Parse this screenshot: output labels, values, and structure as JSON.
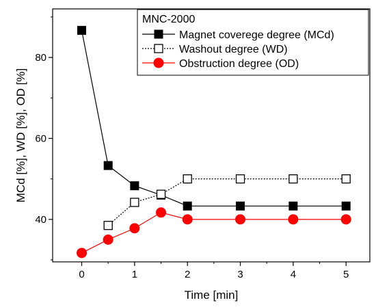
{
  "chart_data": {
    "type": "line",
    "xlabel": "Time [min]",
    "ylabel": "MCd [%], WD [%], OD [%]",
    "xlim": [
      -0.55,
      5.45
    ],
    "ylim": [
      29.5,
      92
    ],
    "x_ticks": [
      0,
      1,
      2,
      3,
      4,
      5
    ],
    "x_minor_ticks": [
      0.5,
      1.5,
      2.5,
      3.5,
      4.5
    ],
    "y_ticks": [
      40,
      60,
      80
    ],
    "y_minor_ticks": [
      30,
      50,
      70,
      90
    ],
    "grid": false,
    "legend_position": "top-right",
    "legend_title": "MNC-2000",
    "series": [
      {
        "name": "Magnet coverege degree (MCd)",
        "x": [
          0,
          0.5,
          1,
          1.5,
          2,
          3,
          4,
          5
        ],
        "y": [
          86.7,
          53.3,
          48.3,
          46.0,
          43.3,
          43.3,
          43.3,
          43.3
        ],
        "color": "#000000",
        "line_style": "solid",
        "marker": "square-filled"
      },
      {
        "name": "Washout degree (WD)",
        "x": [
          0.5,
          1,
          1.5,
          2,
          3,
          4,
          5
        ],
        "y": [
          38.5,
          44.2,
          46.2,
          50.0,
          50.0,
          50.0,
          50.0
        ],
        "color": "#000000",
        "line_style": "dotted",
        "marker": "square-open"
      },
      {
        "name": "Obstruction degree (OD)",
        "x": [
          0,
          0.5,
          1,
          1.5,
          2,
          3,
          4,
          5
        ],
        "y": [
          31.7,
          35.0,
          37.8,
          41.7,
          40.0,
          40.0,
          40.0,
          40.0
        ],
        "color": "#ff0000",
        "line_style": "solid",
        "marker": "circle-filled"
      }
    ]
  }
}
